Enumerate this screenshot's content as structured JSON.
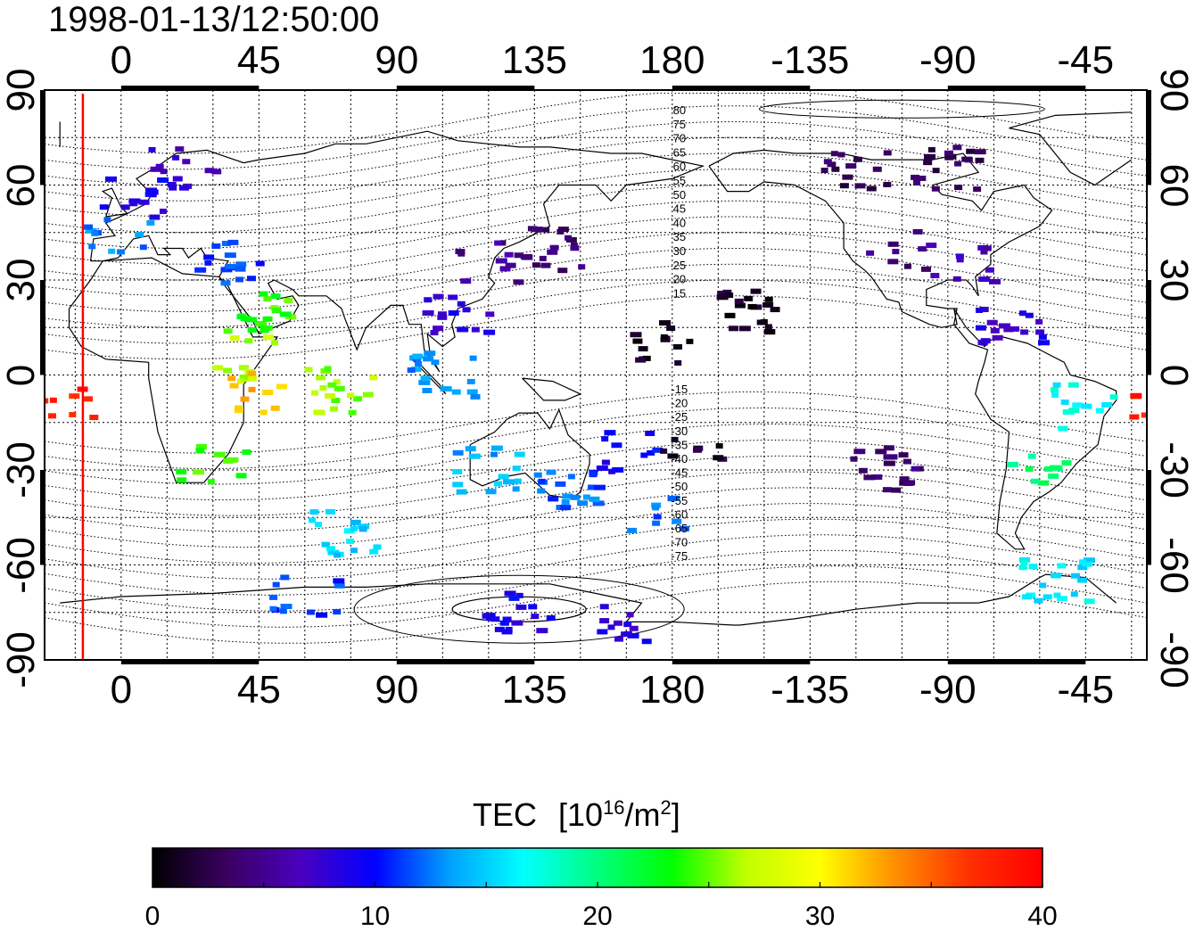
{
  "timestamp": "1998-01-13/12:50:00",
  "map": {
    "projection": "equirectangular",
    "lon_range": [
      -25,
      335
    ],
    "lat_range": [
      -90,
      90
    ],
    "top_lon_ticks": [
      "0",
      "45",
      "90",
      "135",
      "180",
      "-135",
      "-90",
      "-45"
    ],
    "bottom_lon_ticks": [
      "0",
      "45",
      "90",
      "135",
      "180",
      "-135",
      "-90",
      "-45"
    ],
    "left_lat_ticks": [
      "90",
      "60",
      "30",
      "0",
      "-30",
      "-60",
      "-90"
    ],
    "right_lat_ticks": [
      "90",
      "60",
      "30",
      "0",
      "-30",
      "-60",
      "-90"
    ],
    "grid": true,
    "local_noon_line_lon": -12.5,
    "local_noon_line_color": "#ff0000",
    "magnetic_lat_labels_north": [
      "80",
      "75",
      "70",
      "65",
      "60",
      "55",
      "50",
      "45",
      "40",
      "35",
      "30",
      "25",
      "20",
      "15"
    ],
    "magnetic_lat_labels_south": [
      "-15",
      "-20",
      "-25",
      "-30",
      "-35",
      "-40",
      "-45",
      "-50",
      "-55",
      "-60",
      "-65",
      "-70",
      "-75"
    ]
  },
  "colorbar": {
    "title": "TEC",
    "unit_prefix": "[10",
    "unit_exp": "16",
    "unit_mid": "/m",
    "unit_exp2": "2",
    "unit_suffix": "]",
    "ticks": [
      "0",
      "10",
      "20",
      "30",
      "40"
    ],
    "min": 0,
    "max": 40,
    "colors": [
      "#000000",
      "#3a0060",
      "#4a00c0",
      "#0000ff",
      "#00a0ff",
      "#00ffff",
      "#00ff80",
      "#00ff00",
      "#c0ff00",
      "#ffff00",
      "#ff9000",
      "#ff3000",
      "#ff0000"
    ]
  },
  "chart_data": {
    "type": "scatter",
    "xlabel": "",
    "ylabel": "",
    "colorbar_label": "TEC [10^16/m^2]",
    "xlim": [
      -25,
      335
    ],
    "ylim": [
      -90,
      90
    ],
    "clusters": [
      {
        "lon": 20,
        "lat": 65,
        "tec": 7
      },
      {
        "lon": 5,
        "lat": 55,
        "tec": 9
      },
      {
        "lon": 0,
        "lat": 45,
        "tec": 13
      },
      {
        "lon": 35,
        "lat": 35,
        "tec": 11
      },
      {
        "lon": 45,
        "lat": 20,
        "tec": 24
      },
      {
        "lon": 40,
        "lat": 5,
        "tec": 27
      },
      {
        "lon": 42,
        "lat": -5,
        "tec": 32
      },
      {
        "lon": 72,
        "lat": -5,
        "tec": 26
      },
      {
        "lon": 30,
        "lat": -28,
        "tec": 24
      },
      {
        "lon": -20,
        "lat": -8,
        "tec": 38
      },
      {
        "lon": 120,
        "lat": 35,
        "tec": 5
      },
      {
        "lon": 140,
        "lat": 40,
        "tec": 4
      },
      {
        "lon": 110,
        "lat": 20,
        "tec": 8
      },
      {
        "lon": 105,
        "lat": 0,
        "tec": 13
      },
      {
        "lon": 120,
        "lat": -30,
        "tec": 14
      },
      {
        "lon": 145,
        "lat": -35,
        "tec": 12
      },
      {
        "lon": 165,
        "lat": -25,
        "tec": 10
      },
      {
        "lon": 175,
        "lat": -45,
        "tec": 12
      },
      {
        "lon": 73,
        "lat": -50,
        "tec": 15
      },
      {
        "lon": 60,
        "lat": -70,
        "tec": 11
      },
      {
        "lon": 130,
        "lat": -75,
        "tec": 9
      },
      {
        "lon": 165,
        "lat": -80,
        "tec": 8
      },
      {
        "lon": 175,
        "lat": 10,
        "tec": 1
      },
      {
        "lon": 185,
        "lat": -20,
        "tec": 2
      },
      {
        "lon": -155,
        "lat": 20,
        "tec": 1
      },
      {
        "lon": -105,
        "lat": 40,
        "tec": 4
      },
      {
        "lon": -85,
        "lat": 35,
        "tec": 6
      },
      {
        "lon": -90,
        "lat": 65,
        "tec": 3
      },
      {
        "lon": -120,
        "lat": 65,
        "tec": 3
      },
      {
        "lon": -70,
        "lat": 15,
        "tec": 8
      },
      {
        "lon": -45,
        "lat": -10,
        "tec": 17
      },
      {
        "lon": -60,
        "lat": -30,
        "tec": 20
      },
      {
        "lon": -55,
        "lat": -65,
        "tec": 16
      },
      {
        "lon": -110,
        "lat": -30,
        "tec": 4
      }
    ]
  }
}
